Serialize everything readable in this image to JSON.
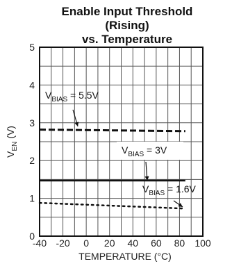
{
  "chart_data": {
    "type": "line",
    "title_lines": [
      "Enable Input Threshold",
      "(Rising)",
      "vs. Temperature"
    ],
    "xlabel": "TEMPERATURE (°C)",
    "ylabel_main": "V",
    "ylabel_sub": "EN",
    "ylabel_unit": "(V)",
    "xlim": [
      -40,
      100
    ],
    "ylim": [
      0,
      5
    ],
    "xticks": [
      "-40",
      "-20",
      "0",
      "20",
      "40",
      "60",
      "80",
      "100"
    ],
    "yticks": [
      "0",
      "1",
      "2",
      "3",
      "4",
      "5"
    ],
    "grid": true,
    "series": [
      {
        "name": "VBIAS = 5.5V",
        "style": "dashed",
        "x": [
          -40,
          85
        ],
        "y": [
          2.82,
          2.78
        ]
      },
      {
        "name": "VBIAS = 3V",
        "style": "solid",
        "x": [
          -40,
          85
        ],
        "y": [
          1.47,
          1.47
        ]
      },
      {
        "name": "VBIAS = 1.6V",
        "style": "dotted",
        "x": [
          -40,
          85
        ],
        "y": [
          0.88,
          0.73
        ]
      }
    ],
    "annotations": [
      {
        "pre": "V",
        "sub": "BIAS",
        "post": " = 5.5V",
        "series": 0
      },
      {
        "pre": "V",
        "sub": "BIAS",
        "post": " = 3V",
        "series": 1
      },
      {
        "pre": "V",
        "sub": "BIAS",
        "post": " = 1.6V",
        "series": 2
      }
    ]
  }
}
